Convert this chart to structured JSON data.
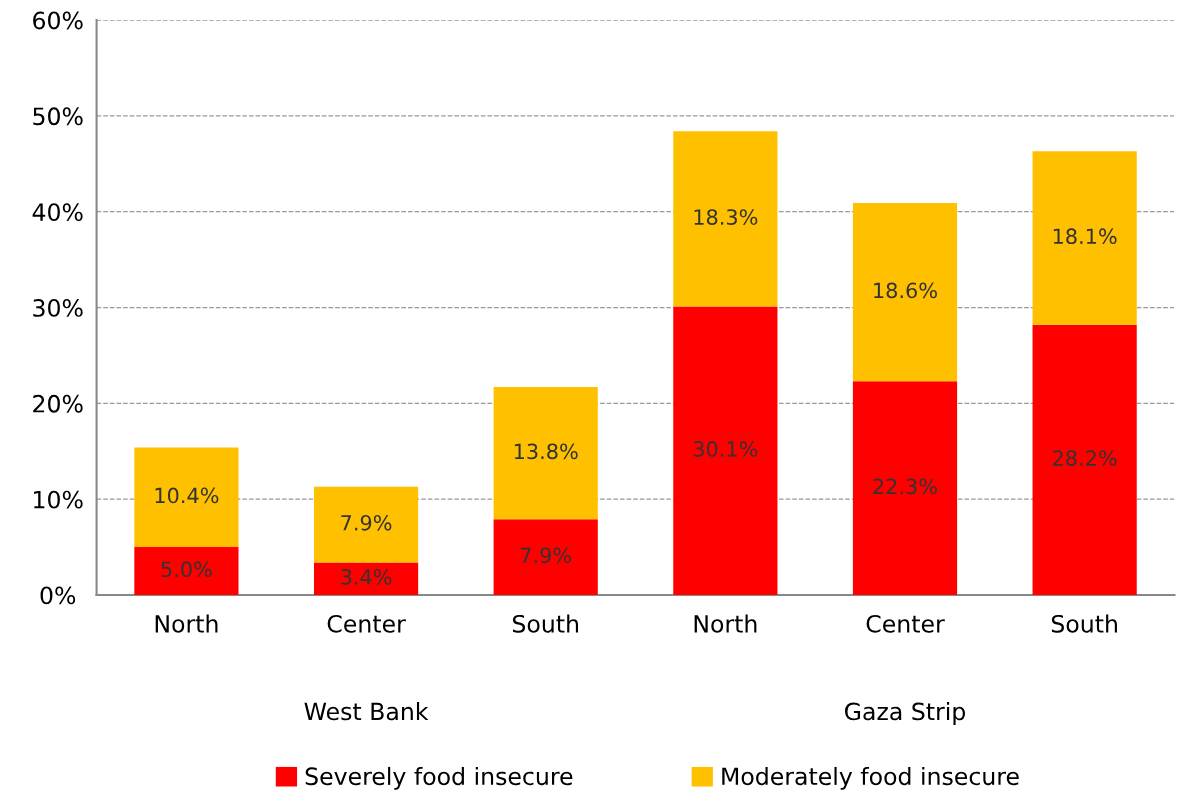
{
  "chart_data": {
    "type": "bar",
    "stacked": true,
    "categories": [
      "North",
      "Center",
      "South",
      "North",
      "Center",
      "South"
    ],
    "series": [
      {
        "name": "Severely food insecure",
        "color": "#ff0000",
        "values": [
          5.0,
          3.4,
          7.9,
          30.1,
          22.3,
          28.2
        ],
        "value_labels": [
          "5.0%",
          "3.4%",
          "7.9%",
          "30.1%",
          "22.3%",
          "28.2%"
        ]
      },
      {
        "name": "Moderately food insecure",
        "color": "#ffc000",
        "values": [
          10.4,
          7.9,
          13.8,
          18.3,
          18.6,
          18.1
        ],
        "value_labels": [
          "10.4%",
          "7.9%",
          "13.8%",
          "18.3%",
          "18.6%",
          "18.1%"
        ]
      }
    ],
    "ylim": [
      0,
      60
    ],
    "yticks": [
      {
        "value": 0,
        "label": "0%"
      },
      {
        "value": 10,
        "label": "10%"
      },
      {
        "value": 20,
        "label": "20%"
      },
      {
        "value": 30,
        "label": "30%"
      },
      {
        "value": 40,
        "label": "40%"
      },
      {
        "value": 50,
        "label": "50%"
      },
      {
        "value": 60,
        "label": "60%"
      }
    ],
    "grid": "y",
    "legend": "bottom",
    "annotations": [
      "West Bank",
      "Gaza Strip"
    ]
  }
}
